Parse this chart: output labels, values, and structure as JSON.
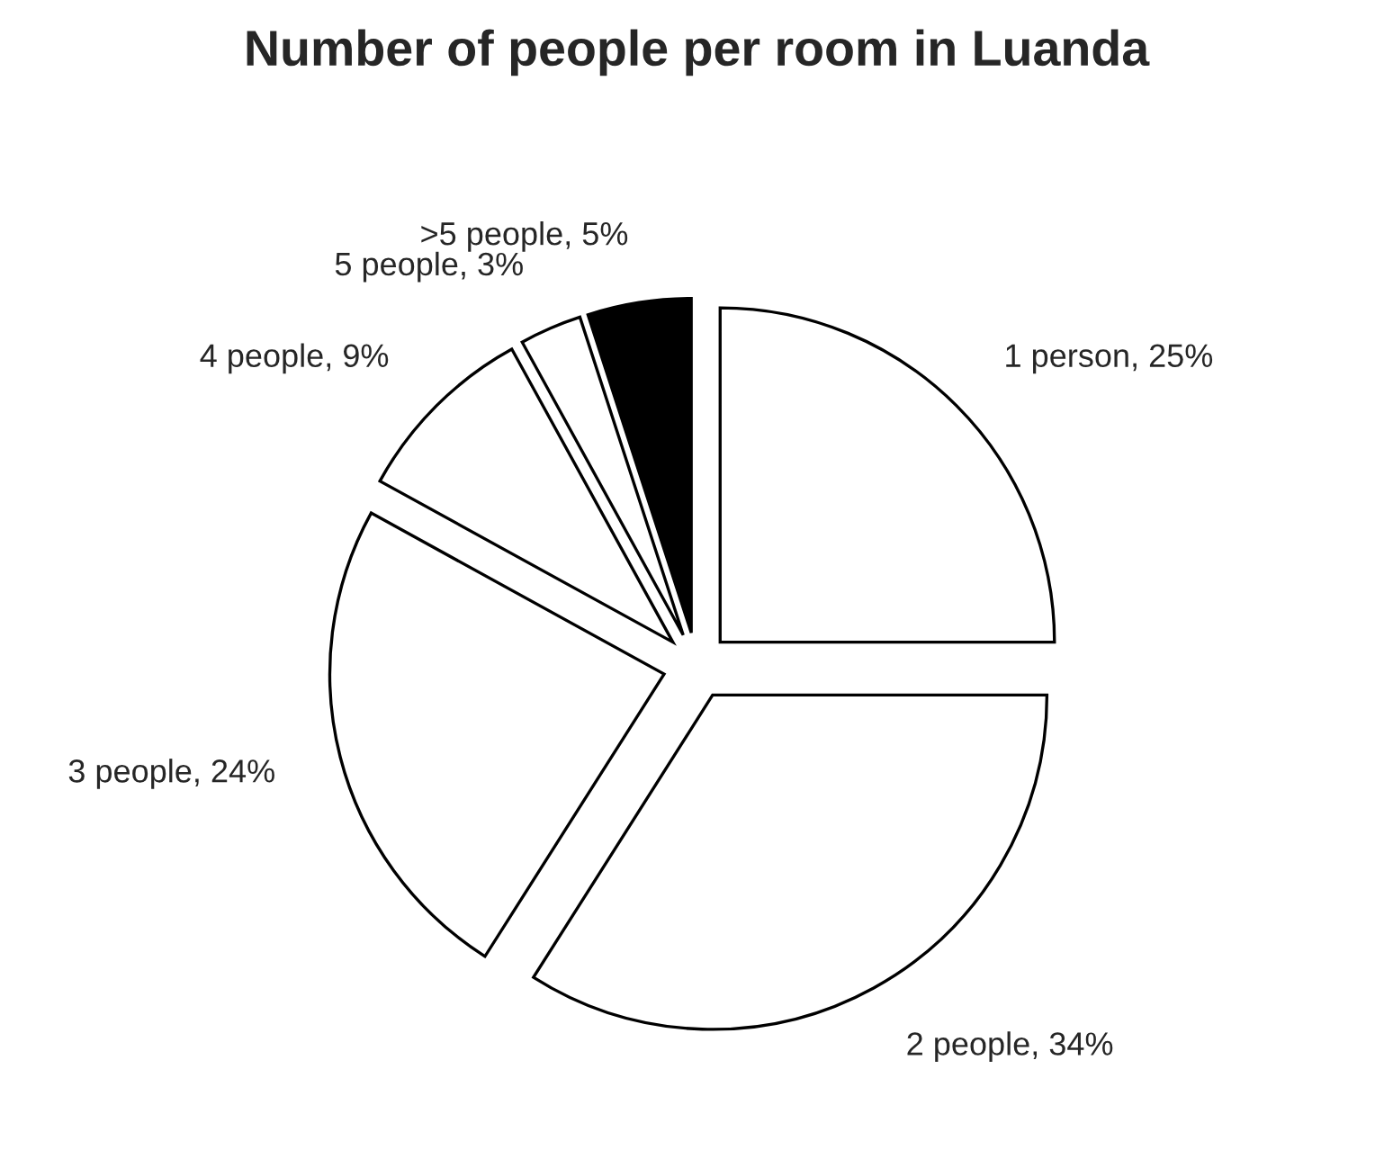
{
  "chart_data": {
    "type": "pie",
    "title": "Number of people per room in Luanda",
    "categories": [
      "1 person",
      "2 people",
      "3 people",
      "4 people",
      "5 people",
      ">5 people"
    ],
    "values": [
      25,
      34,
      24,
      9,
      3,
      5
    ],
    "value_labels": [
      "25%",
      "34%",
      "24%",
      "9%",
      "3%",
      "5%"
    ],
    "colors": [
      "#ffffff",
      "#ffffff",
      "#ffffff",
      "#ffffff",
      "#ffffff",
      "#000000"
    ]
  }
}
